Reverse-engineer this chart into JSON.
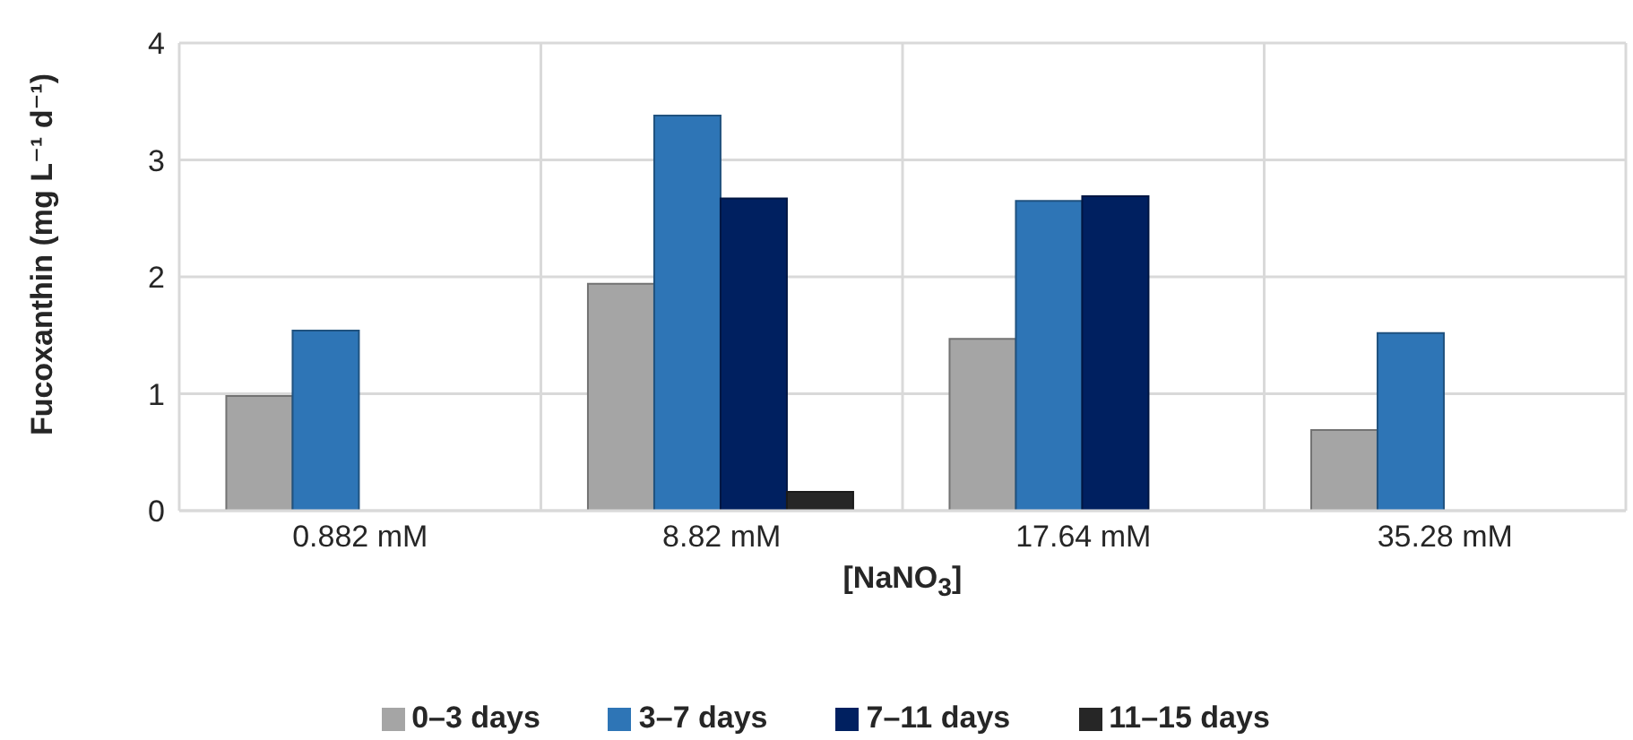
{
  "chart_data": {
    "type": "bar",
    "xlabel": "[NaNO$_{3}$]",
    "ylabel": "Fucoxanthin (mg L⁻¹ d⁻¹)",
    "categories": [
      "0.882 mM",
      "8.82 mM",
      "17.64 mM",
      "35.28 mM"
    ],
    "series": [
      {
        "name": "0–3 days",
        "color": "#a5a5a5",
        "values": [
          0.98,
          1.94,
          1.47,
          0.69
        ]
      },
      {
        "name": "3–7 days",
        "color": "#2e75b6",
        "values": [
          1.54,
          3.38,
          2.65,
          1.52
        ]
      },
      {
        "name": "7–11 days",
        "color": "#002060",
        "values": [
          0,
          2.67,
          2.69,
          0
        ]
      },
      {
        "name": "11–15 days",
        "color": "#262626",
        "values": [
          0,
          0.16,
          0,
          0
        ]
      }
    ],
    "ylim": [
      0,
      4
    ],
    "yticks": [
      0,
      1,
      2,
      3,
      4
    ],
    "grid": true,
    "legend": "bottom"
  }
}
